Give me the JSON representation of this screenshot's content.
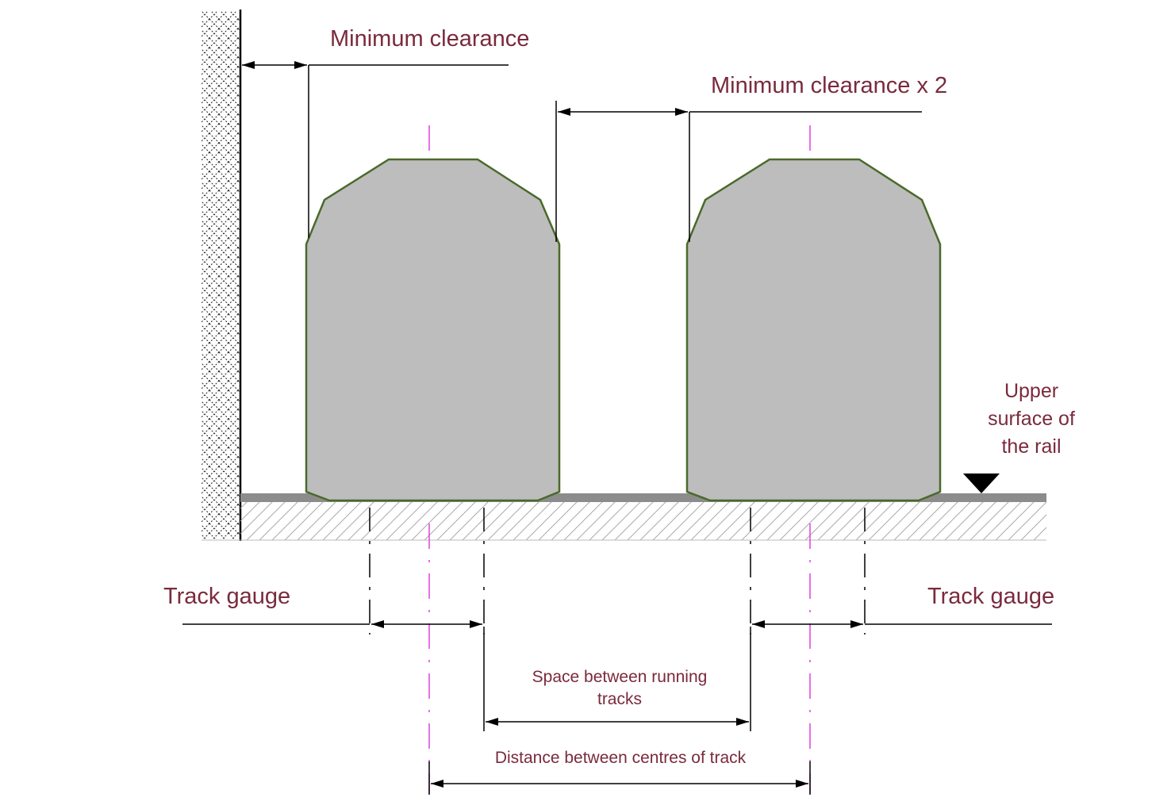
{
  "labels": {
    "min_clearance": "Minimum clearance",
    "min_clearance_x2": "Minimum clearance x 2",
    "upper_surface_line1": "Upper",
    "upper_surface_line2": "surface of",
    "upper_surface_line3": "the rail",
    "track_gauge_left": "Track gauge",
    "track_gauge_right": "Track gauge",
    "space_between_line1": "Space between running",
    "space_between_line2": "tracks",
    "distance_between_centres": "Distance between centres of track"
  },
  "colors": {
    "label_text": "#7a2a3c",
    "gauge_fill": "#bdbdbd",
    "gauge_outline": "#4a6a2a",
    "centerline": "#e040e0",
    "rail": "#8c8c8c",
    "ground_hatch": "#aaaaaa"
  }
}
